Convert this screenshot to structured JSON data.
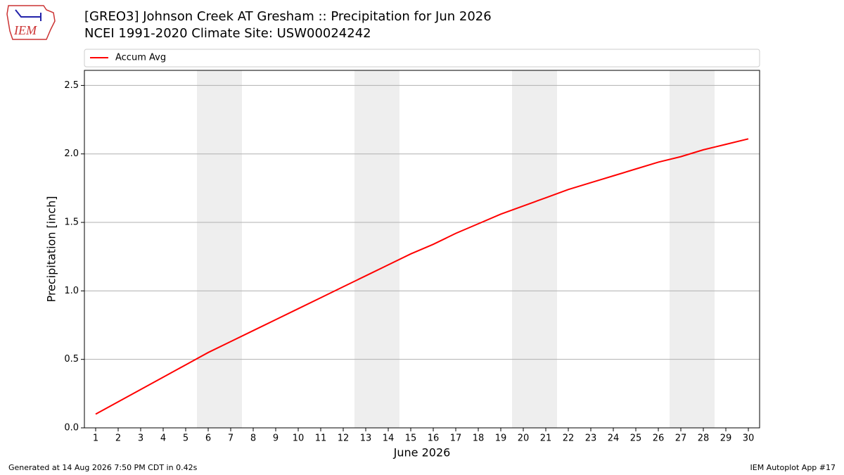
{
  "logo": "IEM",
  "footer_left": "Generated at 14 Aug 2026 7:50 PM CDT in 0.42s",
  "footer_right": "IEM Autoplot App #17",
  "chart_data": {
    "type": "line",
    "title": "[GREO3] Johnson Creek  AT Gresham :: Precipitation for Jun 2026",
    "subtitle": "NCEI 1991-2020 Climate Site: USW00024242",
    "x_label": "June 2026",
    "y_label": "Precipitation [inch]",
    "x": [
      1,
      2,
      3,
      4,
      5,
      6,
      7,
      8,
      9,
      10,
      11,
      12,
      13,
      14,
      15,
      16,
      17,
      18,
      19,
      20,
      21,
      22,
      23,
      24,
      25,
      26,
      27,
      28,
      29,
      30
    ],
    "series": [
      {
        "name": "Accum Avg",
        "color": "#ff0000",
        "values": [
          0.1,
          0.19,
          0.28,
          0.37,
          0.46,
          0.55,
          0.63,
          0.71,
          0.79,
          0.87,
          0.95,
          1.03,
          1.11,
          1.19,
          1.27,
          1.34,
          1.42,
          1.49,
          1.56,
          1.62,
          1.68,
          1.74,
          1.79,
          1.84,
          1.89,
          1.94,
          1.98,
          2.03,
          2.07,
          2.11
        ]
      }
    ],
    "xlim": [
      0.5,
      30.5
    ],
    "xticks": [
      1,
      2,
      3,
      4,
      5,
      6,
      7,
      8,
      9,
      10,
      11,
      12,
      13,
      14,
      15,
      16,
      17,
      18,
      19,
      20,
      21,
      22,
      23,
      24,
      25,
      26,
      27,
      28,
      29,
      30
    ],
    "ylim": [
      0,
      2.61
    ],
    "yticks": [
      {
        "value": 0,
        "label": "0.0"
      },
      {
        "value": 0.5,
        "label": "0.5"
      },
      {
        "value": 1,
        "label": "1.0"
      },
      {
        "value": 1.5,
        "label": "1.5"
      },
      {
        "value": 2,
        "label": "2.0"
      },
      {
        "value": 2.5,
        "label": "2.5"
      }
    ],
    "weekend_spans": [
      [
        5.5,
        7.5
      ],
      [
        12.5,
        14.5
      ],
      [
        19.5,
        21.5
      ],
      [
        26.5,
        28.5
      ]
    ],
    "grid": "y",
    "legend": "top"
  }
}
